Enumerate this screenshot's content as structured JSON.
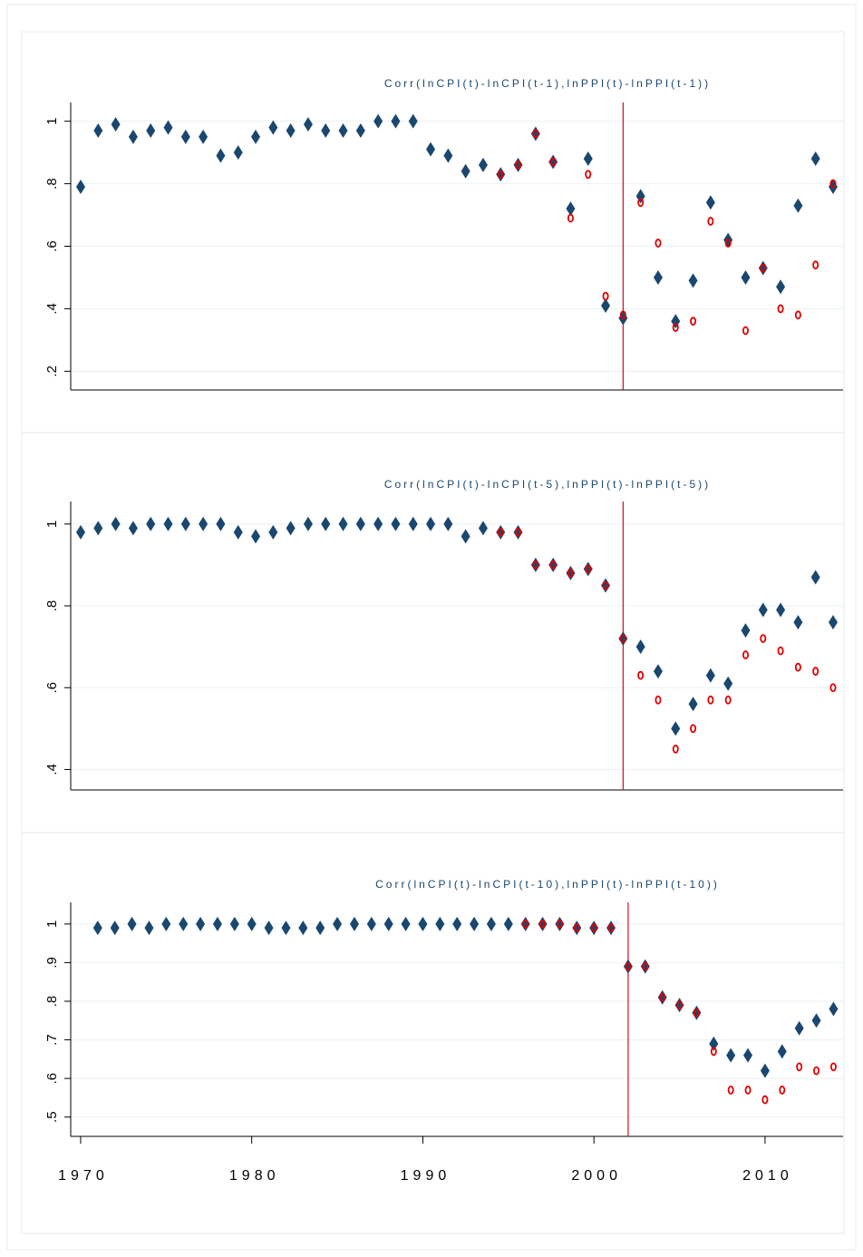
{
  "chart_data": [
    {
      "type": "scatter",
      "title": "Corr(lnCPI(t)-lnCPI(t-1),lnPPI(t)-lnPPI(t-1))",
      "x": [
        1970,
        1971,
        1972,
        1973,
        1974,
        1975,
        1976,
        1977,
        1978,
        1979,
        1980,
        1981,
        1982,
        1983,
        1984,
        1985,
        1986,
        1987,
        1988,
        1989,
        1990,
        1991,
        1992,
        1993,
        1994,
        1995,
        1996,
        1997,
        1998,
        1999,
        2000,
        2001,
        2002,
        2003,
        2004,
        2005,
        2006,
        2007,
        2008,
        2009,
        2010,
        2011,
        2012,
        2013
      ],
      "series": [
        {
          "color": "#1a476f",
          "marker": "diamond",
          "values": [
            0.79,
            0.97,
            0.99,
            0.95,
            0.97,
            0.98,
            0.95,
            0.95,
            0.89,
            0.9,
            0.95,
            0.98,
            0.97,
            0.99,
            0.97,
            0.97,
            0.97,
            1.0,
            1.0,
            1.0,
            0.91,
            0.89,
            0.84,
            0.86,
            0.83,
            0.86,
            0.96,
            0.87,
            0.72,
            0.88,
            0.41,
            0.37,
            0.76,
            0.5,
            0.36,
            0.49,
            0.74,
            0.62,
            0.5,
            0.53,
            0.47,
            0.73,
            0.88,
            0.79
          ]
        },
        {
          "color": "#e00000",
          "marker": "circle",
          "values": [
            null,
            null,
            null,
            null,
            null,
            null,
            null,
            null,
            null,
            null,
            null,
            null,
            null,
            null,
            null,
            null,
            null,
            null,
            null,
            null,
            null,
            null,
            null,
            null,
            0.83,
            0.86,
            0.96,
            0.87,
            0.69,
            0.83,
            0.44,
            0.38,
            0.74,
            0.61,
            0.34,
            0.36,
            0.68,
            0.61,
            0.33,
            0.53,
            0.4,
            0.38,
            0.54,
            0.8
          ]
        }
      ],
      "xlim": [
        1969.43,
        2013.57
      ],
      "ylim": [
        0.14,
        1.06
      ],
      "yticks": [
        {
          "value": 0.2,
          "label": ".2"
        },
        {
          "value": 0.4,
          "label": ".4"
        },
        {
          "value": 0.6,
          "label": ".6"
        },
        {
          "value": 0.8,
          "label": ".8"
        },
        1
      ],
      "grid": true,
      "vline": 2001,
      "vline_color": "#c8102e"
    },
    {
      "type": "scatter",
      "title": "Corr(lnCPI(t)-lnCPI(t-5),lnPPI(t)-lnPPI(t-5))",
      "x": [
        1970,
        1971,
        1972,
        1973,
        1974,
        1975,
        1976,
        1977,
        1978,
        1979,
        1980,
        1981,
        1982,
        1983,
        1984,
        1985,
        1986,
        1987,
        1988,
        1989,
        1990,
        1991,
        1992,
        1993,
        1994,
        1995,
        1996,
        1997,
        1998,
        1999,
        2000,
        2001,
        2002,
        2003,
        2004,
        2005,
        2006,
        2007,
        2008,
        2009,
        2010,
        2011,
        2012,
        2013
      ],
      "series": [
        {
          "color": "#1a476f",
          "marker": "diamond",
          "values": [
            0.98,
            0.99,
            1.0,
            0.99,
            1.0,
            1.0,
            1.0,
            1.0,
            1.0,
            0.98,
            0.97,
            0.98,
            0.99,
            1.0,
            1.0,
            1.0,
            1.0,
            1.0,
            1.0,
            1.0,
            1.0,
            1.0,
            0.97,
            0.99,
            0.98,
            0.98,
            0.9,
            0.9,
            0.88,
            0.89,
            0.85,
            0.72,
            0.7,
            0.64,
            0.5,
            0.56,
            0.63,
            0.61,
            0.74,
            0.79,
            0.79,
            0.76,
            0.87,
            0.76
          ]
        },
        {
          "color": "#e00000",
          "marker": "circle",
          "values": [
            null,
            null,
            null,
            null,
            null,
            null,
            null,
            null,
            null,
            null,
            null,
            null,
            null,
            null,
            null,
            null,
            null,
            null,
            null,
            null,
            null,
            null,
            null,
            null,
            0.98,
            0.98,
            0.9,
            0.9,
            0.88,
            0.89,
            0.85,
            0.72,
            0.63,
            0.57,
            0.45,
            0.5,
            0.57,
            0.57,
            0.68,
            0.72,
            0.69,
            0.65,
            0.64,
            0.6
          ]
        }
      ],
      "xlim": [
        1969.43,
        2013.57
      ],
      "ylim": [
        0.35,
        1.055
      ],
      "yticks": [
        {
          "value": 0.4,
          "label": ".4"
        },
        {
          "value": 0.6,
          "label": ".6"
        },
        {
          "value": 0.8,
          "label": ".8"
        },
        1
      ],
      "grid": true,
      "vline": 2001,
      "vline_color": "#c8102e"
    },
    {
      "type": "scatter",
      "title": "Corr(lnCPI(t)-lnCPI(t-10),lnPPI(t)-lnPPI(t-10))",
      "x": [
        1971,
        1972,
        1973,
        1974,
        1975,
        1976,
        1977,
        1978,
        1979,
        1980,
        1981,
        1982,
        1983,
        1984,
        1985,
        1986,
        1987,
        1988,
        1989,
        1990,
        1991,
        1992,
        1993,
        1994,
        1995,
        1996,
        1997,
        1998,
        1999,
        2000,
        2001,
        2002,
        2003,
        2004,
        2005,
        2006,
        2007,
        2008,
        2009,
        2010,
        2011,
        2012,
        2013,
        2014
      ],
      "series": [
        {
          "color": "#1a476f",
          "marker": "diamond",
          "values": [
            0.99,
            0.99,
            1.0,
            0.99,
            1.0,
            1.0,
            1.0,
            1.0,
            1.0,
            1.0,
            0.99,
            0.99,
            0.99,
            0.99,
            1.0,
            1.0,
            1.0,
            1.0,
            1.0,
            1.0,
            1.0,
            1.0,
            1.0,
            1.0,
            1.0,
            1.0,
            1.0,
            1.0,
            0.99,
            0.99,
            0.99,
            0.89,
            0.89,
            0.81,
            0.79,
            0.77,
            0.69,
            0.66,
            0.66,
            0.62,
            0.67,
            0.73,
            0.75,
            0.78
          ]
        },
        {
          "color": "#e00000",
          "marker": "circle",
          "values": [
            null,
            null,
            null,
            null,
            null,
            null,
            null,
            null,
            null,
            null,
            null,
            null,
            null,
            null,
            null,
            null,
            null,
            null,
            null,
            null,
            null,
            null,
            null,
            null,
            null,
            1.0,
            1.0,
            1.0,
            0.99,
            0.99,
            0.99,
            0.89,
            0.89,
            0.81,
            0.79,
            0.77,
            0.67,
            0.57,
            0.57,
            0.545,
            0.57,
            0.63,
            0.62,
            0.63
          ]
        }
      ],
      "xlim": [
        1969.42,
        2014.56
      ],
      "ylim": [
        0.45,
        1.056
      ],
      "xticks": [
        1970,
        1980,
        1990,
        2000,
        2010
      ],
      "yticks": [
        {
          "value": 0.5,
          "label": ".5"
        },
        {
          "value": 0.6,
          "label": ".6"
        },
        {
          "value": 0.7,
          "label": ".7"
        },
        {
          "value": 0.8,
          "label": ".8"
        },
        {
          "value": 0.9,
          "label": ".9"
        },
        1
      ],
      "grid": true,
      "vline": 2002,
      "vline_color": "#c8102e"
    }
  ]
}
